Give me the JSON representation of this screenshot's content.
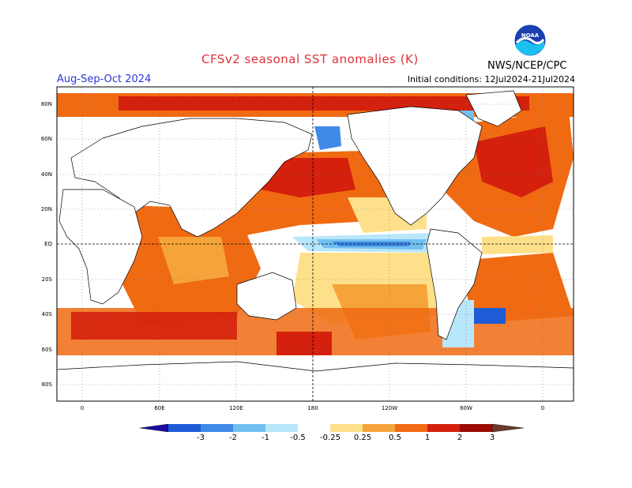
{
  "header": {
    "title": "CFSv2 seasonal SST anomalies (K)",
    "agency": "NWS/NCEP/CPC",
    "season": "Aug-Sep-Oct 2024",
    "initial_conditions": "Initial conditions: 12Jul2024-21Jul2024",
    "logo_text": "NOAA"
  },
  "axes": {
    "lat_labels": [
      "80N",
      "60N",
      "40N",
      "20N",
      "EQ",
      "20S",
      "40S",
      "60S",
      "80S"
    ],
    "lon_labels": [
      "0",
      "60E",
      "120E",
      "180",
      "120W",
      "60W",
      "0"
    ]
  },
  "colorbar": {
    "labels": [
      "-3",
      "-2",
      "-1",
      "-0.5",
      "-0.25",
      "0.25",
      "0.5",
      "1",
      "2",
      "3"
    ],
    "colors": [
      "#1a0ca0",
      "#1f5bd6",
      "#3f8ae6",
      "#72bff2",
      "#b8e6fa",
      "#ffffff",
      "#ffe08a",
      "#f5a43a",
      "#f06a12",
      "#d4200c",
      "#9c0c04",
      "#6b3a2a"
    ]
  }
}
